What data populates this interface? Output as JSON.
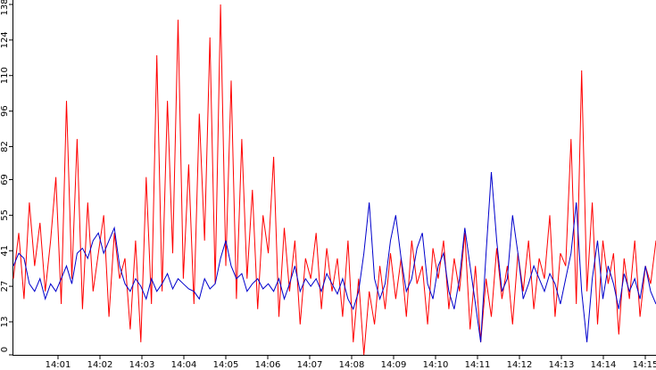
{
  "chart_data": {
    "type": "line",
    "x_labels": [
      "14:01",
      "14:02",
      "14:03",
      "14:04",
      "14:05",
      "14:06",
      "14:07",
      "14:08",
      "14:09",
      "14:10",
      "14:11",
      "14:12",
      "14:13",
      "14:14",
      "14:15"
    ],
    "ylim": [
      0,
      138
    ],
    "yticks": [
      0,
      13,
      27,
      41,
      55,
      69,
      82,
      96,
      110,
      124,
      138
    ],
    "series": [
      {
        "color": "#ff0000",
        "values": [
          30,
          48,
          22,
          60,
          35,
          52,
          25,
          45,
          70,
          20,
          100,
          30,
          85,
          18,
          60,
          25,
          40,
          55,
          15,
          48,
          30,
          38,
          10,
          45,
          5,
          70,
          20,
          118,
          25,
          100,
          40,
          132,
          30,
          75,
          20,
          95,
          45,
          125,
          28,
          138,
          35,
          108,
          22,
          85,
          30,
          65,
          18,
          55,
          40,
          78,
          15,
          50,
          25,
          45,
          12,
          38,
          30,
          48,
          18,
          42,
          25,
          38,
          15,
          45,
          5,
          30,
          0,
          25,
          12,
          35,
          18,
          40,
          22,
          38,
          15,
          45,
          28,
          35,
          12,
          42,
          30,
          45,
          18,
          38,
          25,
          48,
          10,
          35,
          5,
          30,
          15,
          42,
          22,
          35,
          12,
          40,
          25,
          45,
          18,
          38,
          30,
          55,
          15,
          40,
          35,
          85,
          20,
          112,
          25,
          60,
          12,
          45,
          28,
          40,
          8,
          38,
          22,
          45,
          15,
          35,
          28,
          45
        ]
      },
      {
        "color": "#0000cc",
        "values": [
          35,
          40,
          38,
          28,
          25,
          30,
          22,
          28,
          25,
          30,
          35,
          28,
          40,
          42,
          38,
          45,
          48,
          40,
          45,
          50,
          35,
          28,
          25,
          30,
          27,
          22,
          30,
          25,
          28,
          32,
          26,
          30,
          28,
          26,
          25,
          22,
          30,
          26,
          28,
          38,
          45,
          35,
          30,
          32,
          25,
          28,
          30,
          26,
          28,
          25,
          30,
          22,
          28,
          35,
          25,
          30,
          27,
          30,
          25,
          32,
          28,
          24,
          30,
          22,
          18,
          25,
          40,
          60,
          30,
          22,
          28,
          45,
          55,
          38,
          25,
          30,
          42,
          48,
          28,
          22,
          35,
          40,
          25,
          18,
          30,
          50,
          35,
          20,
          5,
          40,
          72,
          45,
          25,
          30,
          55,
          40,
          22,
          28,
          35,
          30,
          25,
          32,
          28,
          20,
          30,
          40,
          60,
          25,
          5,
          30,
          45,
          22,
          35,
          28,
          18,
          32,
          25,
          30,
          22,
          35,
          25,
          20
        ]
      }
    ]
  }
}
